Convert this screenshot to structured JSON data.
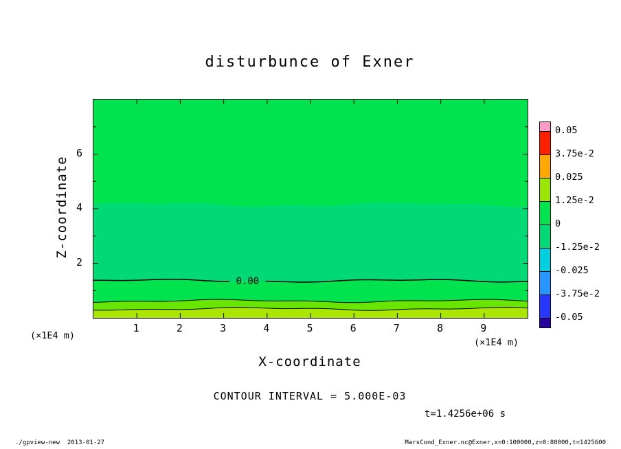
{
  "title": "disturbunce of Exner",
  "axes": {
    "x": {
      "label": "X-coordinate",
      "unit": "(×1E4 m)"
    },
    "y": {
      "label": "Z-coordinate",
      "unit": "(×1E4 m)"
    }
  },
  "annotations": {
    "contour_interval": "CONTOUR INTERVAL = 5.000E-03",
    "time": "t=1.4256e+06 s"
  },
  "colorbar": {
    "labels": [
      "0.05",
      "3.75e-2",
      "0.025",
      "1.25e-2",
      "0",
      "-1.25e-2",
      "-0.025",
      "-3.75e-2",
      "-0.05"
    ],
    "colors": [
      "#FF9CC8",
      "#FF1E00",
      "#FFA800",
      "#9BE600",
      "#00E24E",
      "#00D975",
      "#00CFE0",
      "#2896FF",
      "#2837FF",
      "#2800A0"
    ]
  },
  "footer": {
    "left": "./gpview-new  2013-01-27",
    "right": "MarsCond_Exner.nc@Exner,x=0:100000,z=0:80000,t=1425600"
  },
  "chart_data": {
    "type": "heatmap",
    "title": "disturbunce of Exner",
    "xlabel": "X-coordinate",
    "ylabel": "Z-coordinate",
    "x_unit": "(×1E4 m)",
    "y_unit": "(×1E4 m)",
    "xlim": [
      0,
      10
    ],
    "ylim": [
      0,
      8
    ],
    "x_ticks": [
      1,
      2,
      3,
      4,
      5,
      6,
      7,
      8,
      9
    ],
    "y_ticks": [
      2,
      4,
      6
    ],
    "grid": false,
    "legend_position": "right",
    "contour_interval": 0.005,
    "time_seconds": 1425600,
    "tone_levels": [
      -0.05,
      -0.0375,
      -0.025,
      -0.0125,
      0,
      0.0125,
      0.025,
      0.0375,
      0.05
    ],
    "bands": [
      {
        "z_top": 8.0,
        "z_bottom": 4.15,
        "color": "#00E24E",
        "value_range": [
          0,
          0.0125
        ]
      },
      {
        "z_top": 4.15,
        "z_bottom": 1.36,
        "color": "#00D975",
        "value_range": [
          -0.0125,
          0
        ]
      },
      {
        "z_top": 1.36,
        "z_bottom": 0.62,
        "color": "#00E24E",
        "value_range": [
          0,
          0.005
        ]
      },
      {
        "z_top": 0.62,
        "z_bottom": 0.33,
        "color": "#69E600",
        "value_range": [
          0.005,
          0.01
        ]
      },
      {
        "z_top": 0.33,
        "z_bottom": 0.0,
        "color": "#ABE600",
        "value_range": [
          0.01,
          0.015
        ]
      }
    ],
    "contours": [
      {
        "z": 1.36,
        "value": 0.0,
        "label": "0.00",
        "label_x": 3.55
      },
      {
        "z": 0.62,
        "value": 0.005
      },
      {
        "z": 0.33,
        "value": 0.01
      }
    ]
  }
}
